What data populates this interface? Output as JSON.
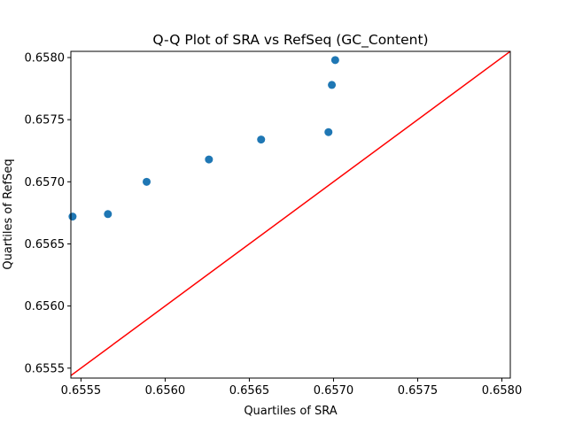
{
  "chart_data": {
    "type": "scatter",
    "title": "Q-Q Plot of SRA vs RefSeq (GC_Content)",
    "xlabel": "Quartiles of SRA",
    "ylabel": "Quartiles of RefSeq",
    "xlim": [
      0.65544,
      0.65805
    ],
    "ylim": [
      0.65542,
      0.65805
    ],
    "x_ticks": [
      "0.6555",
      "0.6560",
      "0.6565",
      "0.6570",
      "0.6575",
      "0.6580"
    ],
    "y_ticks": [
      "0.6555",
      "0.6560",
      "0.6565",
      "0.6570",
      "0.6575",
      "0.6580"
    ],
    "grid": false,
    "point_color": "#1f77b4",
    "line_color": "#ff0000",
    "points": [
      {
        "x": 0.65545,
        "y": 0.65672
      },
      {
        "x": 0.65566,
        "y": 0.65674
      },
      {
        "x": 0.65589,
        "y": 0.657
      },
      {
        "x": 0.65626,
        "y": 0.65718
      },
      {
        "x": 0.65657,
        "y": 0.65734
      },
      {
        "x": 0.65697,
        "y": 0.6574
      },
      {
        "x": 0.65699,
        "y": 0.65778
      },
      {
        "x": 0.65701,
        "y": 0.65798
      }
    ],
    "reference_line": {
      "from": [
        0.65544,
        0.65544
      ],
      "to": [
        0.65805,
        0.65805
      ]
    }
  }
}
